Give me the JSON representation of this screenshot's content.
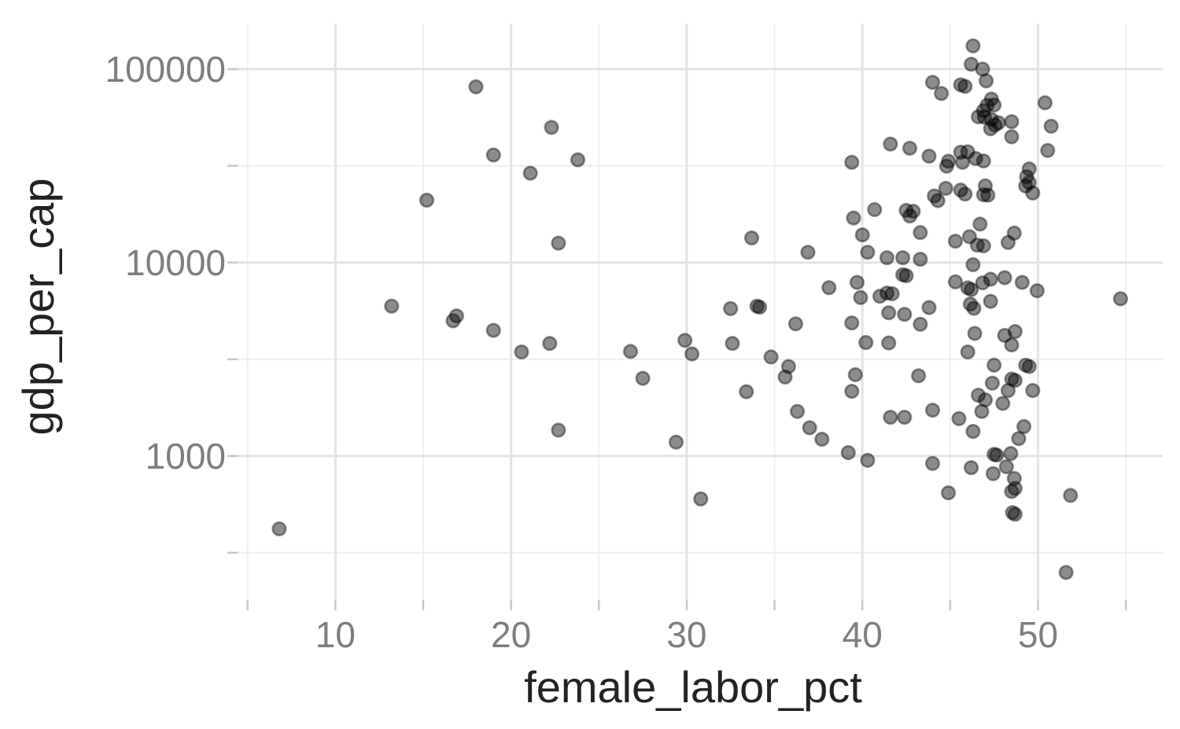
{
  "chart_data": {
    "type": "scatter",
    "title": "",
    "xlabel": "female_labor_pct",
    "ylabel": "gdp_per_cap",
    "x_axis": {
      "domain": [
        4.43,
        57.1
      ],
      "major_ticks": [
        {
          "v": 10,
          "label": "10"
        },
        {
          "v": 20,
          "label": "20"
        },
        {
          "v": 30,
          "label": "30"
        },
        {
          "v": 40,
          "label": "40"
        },
        {
          "v": 50,
          "label": "50"
        }
      ],
      "minor_ticks": [
        5,
        15,
        25,
        35,
        45,
        55
      ]
    },
    "y_axis": {
      "scale": "log10",
      "domain": [
        180,
        172000
      ],
      "major_ticks": [
        {
          "v": 1000,
          "label": "1000"
        },
        {
          "v": 10000,
          "label": "10000"
        },
        {
          "v": 100000,
          "label": "100000"
        }
      ],
      "minor_ticks": [
        316,
        3162,
        31623
      ]
    },
    "grid": true,
    "legend": "none",
    "style": {
      "background": "#ffffff",
      "grid_major_color": "#e3e3e3",
      "grid_minor_color": "#efefef",
      "tick_color": "#c8c8c8",
      "tick_label_color": "#7e7e7e",
      "axis_title_color": "#232323",
      "point_fill": "rgba(0,0,0,0.45)",
      "point_stroke": "rgba(0,0,0,0.40)",
      "point_radius": 8.3,
      "point_stroke_width": 2.6
    },
    "points": [
      [
        6.8,
        420
      ],
      [
        13.2,
        5950
      ],
      [
        15.2,
        21000
      ],
      [
        16.7,
        5000
      ],
      [
        16.9,
        5300
      ],
      [
        18,
        81000
      ],
      [
        19,
        36000
      ],
      [
        19,
        4460
      ],
      [
        20.6,
        3450
      ],
      [
        21.1,
        29000
      ],
      [
        22.3,
        50000
      ],
      [
        23.8,
        34000
      ],
      [
        22.7,
        12600
      ],
      [
        22.2,
        3820
      ],
      [
        22.7,
        1360
      ],
      [
        26.8,
        3470
      ],
      [
        27.5,
        2520
      ],
      [
        29.4,
        1180
      ],
      [
        29.9,
        3960
      ],
      [
        30.3,
        3370
      ],
      [
        30.8,
        600
      ],
      [
        32.5,
        5780
      ],
      [
        34,
        5950
      ],
      [
        34.15,
        5880
      ],
      [
        32.6,
        3820
      ],
      [
        33.4,
        2150
      ],
      [
        33.7,
        13400
      ],
      [
        34.8,
        3250
      ],
      [
        35.6,
        2560
      ],
      [
        35.8,
        2900
      ],
      [
        36.2,
        4820
      ],
      [
        36.3,
        1700
      ],
      [
        36.9,
        11300
      ],
      [
        37,
        1400
      ],
      [
        37.7,
        1220
      ],
      [
        38.1,
        7420
      ],
      [
        39.2,
        1040
      ],
      [
        39.4,
        2160
      ],
      [
        39.6,
        2630
      ],
      [
        39.4,
        4870
      ],
      [
        39.4,
        33000
      ],
      [
        39.5,
        17000
      ],
      [
        39.7,
        7900
      ],
      [
        39.9,
        6600
      ],
      [
        40,
        13900
      ],
      [
        40.2,
        3860
      ],
      [
        40.3,
        11300
      ],
      [
        40.3,
        950
      ],
      [
        40.7,
        18800
      ],
      [
        41,
        6700
      ],
      [
        41.4,
        6950
      ],
      [
        41.7,
        6900
      ],
      [
        41.5,
        5500
      ],
      [
        42.4,
        5400
      ],
      [
        41.5,
        3840
      ],
      [
        41.6,
        41000
      ],
      [
        42.7,
        39000
      ],
      [
        42.3,
        8650
      ],
      [
        42.5,
        8550
      ],
      [
        42.5,
        18600
      ],
      [
        42.9,
        18400
      ],
      [
        42.7,
        17400
      ],
      [
        43.2,
        2600
      ],
      [
        43.3,
        4800
      ],
      [
        43.3,
        14300
      ],
      [
        41.4,
        10600
      ],
      [
        42.3,
        10600
      ],
      [
        43.3,
        10400
      ],
      [
        43.8,
        35500
      ],
      [
        43.8,
        5850
      ],
      [
        44,
        915
      ],
      [
        44,
        1725
      ],
      [
        41.6,
        1585
      ],
      [
        42.4,
        1585
      ],
      [
        44,
        85500
      ],
      [
        44.5,
        74800
      ],
      [
        44.1,
        22100
      ],
      [
        44.3,
        20900
      ],
      [
        44.75,
        24200
      ],
      [
        44.8,
        31500
      ],
      [
        44.9,
        33400
      ],
      [
        44.9,
        645
      ],
      [
        45.6,
        83000
      ],
      [
        45.85,
        81500
      ],
      [
        46.2,
        106000
      ],
      [
        46.85,
        100000
      ],
      [
        46.3,
        132000
      ],
      [
        47.05,
        87000
      ],
      [
        47.35,
        70000
      ],
      [
        47.1,
        65000
      ],
      [
        47.5,
        65300
      ],
      [
        46.9,
        61000
      ],
      [
        46.6,
        56700
      ],
      [
        46.95,
        56500
      ],
      [
        47.35,
        55000
      ],
      [
        47.75,
        52800
      ],
      [
        48.5,
        53500
      ],
      [
        47.3,
        49200
      ],
      [
        47.55,
        51400
      ],
      [
        48.5,
        44700
      ],
      [
        50.4,
        67000
      ],
      [
        50.75,
        50700
      ],
      [
        50.55,
        38000
      ],
      [
        45.6,
        37200
      ],
      [
        46,
        37400
      ],
      [
        45.7,
        33000
      ],
      [
        46.45,
        34500
      ],
      [
        46.9,
        33500
      ],
      [
        49.5,
        30500
      ],
      [
        49.35,
        27800
      ],
      [
        49.5,
        25900
      ],
      [
        49.3,
        24900
      ],
      [
        49.7,
        22900
      ],
      [
        45.6,
        23700
      ],
      [
        45.85,
        22600
      ],
      [
        47,
        24900
      ],
      [
        46.9,
        22400
      ],
      [
        47.15,
        22300
      ],
      [
        46.7,
        15800
      ],
      [
        46.1,
        13600
      ],
      [
        45.3,
        12900
      ],
      [
        46.55,
        12300
      ],
      [
        46.9,
        12200
      ],
      [
        48.65,
        14200
      ],
      [
        48.3,
        12700
      ],
      [
        46.3,
        9750
      ],
      [
        47.3,
        8200
      ],
      [
        48.1,
        8350
      ],
      [
        49.1,
        7900
      ],
      [
        45.3,
        7950
      ],
      [
        46,
        7400
      ],
      [
        46.2,
        7250
      ],
      [
        46.85,
        7850
      ],
      [
        46.15,
        6100
      ],
      [
        46.35,
        5800
      ],
      [
        47.3,
        6300
      ],
      [
        46.4,
        4300
      ],
      [
        46,
        3450
      ],
      [
        48.1,
        4200
      ],
      [
        48.7,
        4400
      ],
      [
        48.5,
        3750
      ],
      [
        47.5,
        2950
      ],
      [
        49.3,
        2950
      ],
      [
        49.5,
        2900
      ],
      [
        48.5,
        2500
      ],
      [
        48.7,
        2460
      ],
      [
        47.4,
        2380
      ],
      [
        48.3,
        2180
      ],
      [
        48,
        1870
      ],
      [
        49.7,
        2180
      ],
      [
        46.6,
        2060
      ],
      [
        47,
        1950
      ],
      [
        46.8,
        1700
      ],
      [
        45.5,
        1560
      ],
      [
        46.3,
        1340
      ],
      [
        49.2,
        1420
      ],
      [
        48.9,
        1230
      ],
      [
        47.5,
        1020
      ],
      [
        47.65,
        1010
      ],
      [
        48.45,
        1030
      ],
      [
        46.2,
        870
      ],
      [
        47.45,
        810
      ],
      [
        48.2,
        880
      ],
      [
        48.65,
        765
      ],
      [
        48.7,
        680
      ],
      [
        48.5,
        655
      ],
      [
        48.55,
        510
      ],
      [
        48.7,
        500
      ],
      [
        49.95,
        7150
      ],
      [
        51.6,
        250
      ],
      [
        51.85,
        625
      ],
      [
        54.7,
        6500
      ]
    ]
  }
}
